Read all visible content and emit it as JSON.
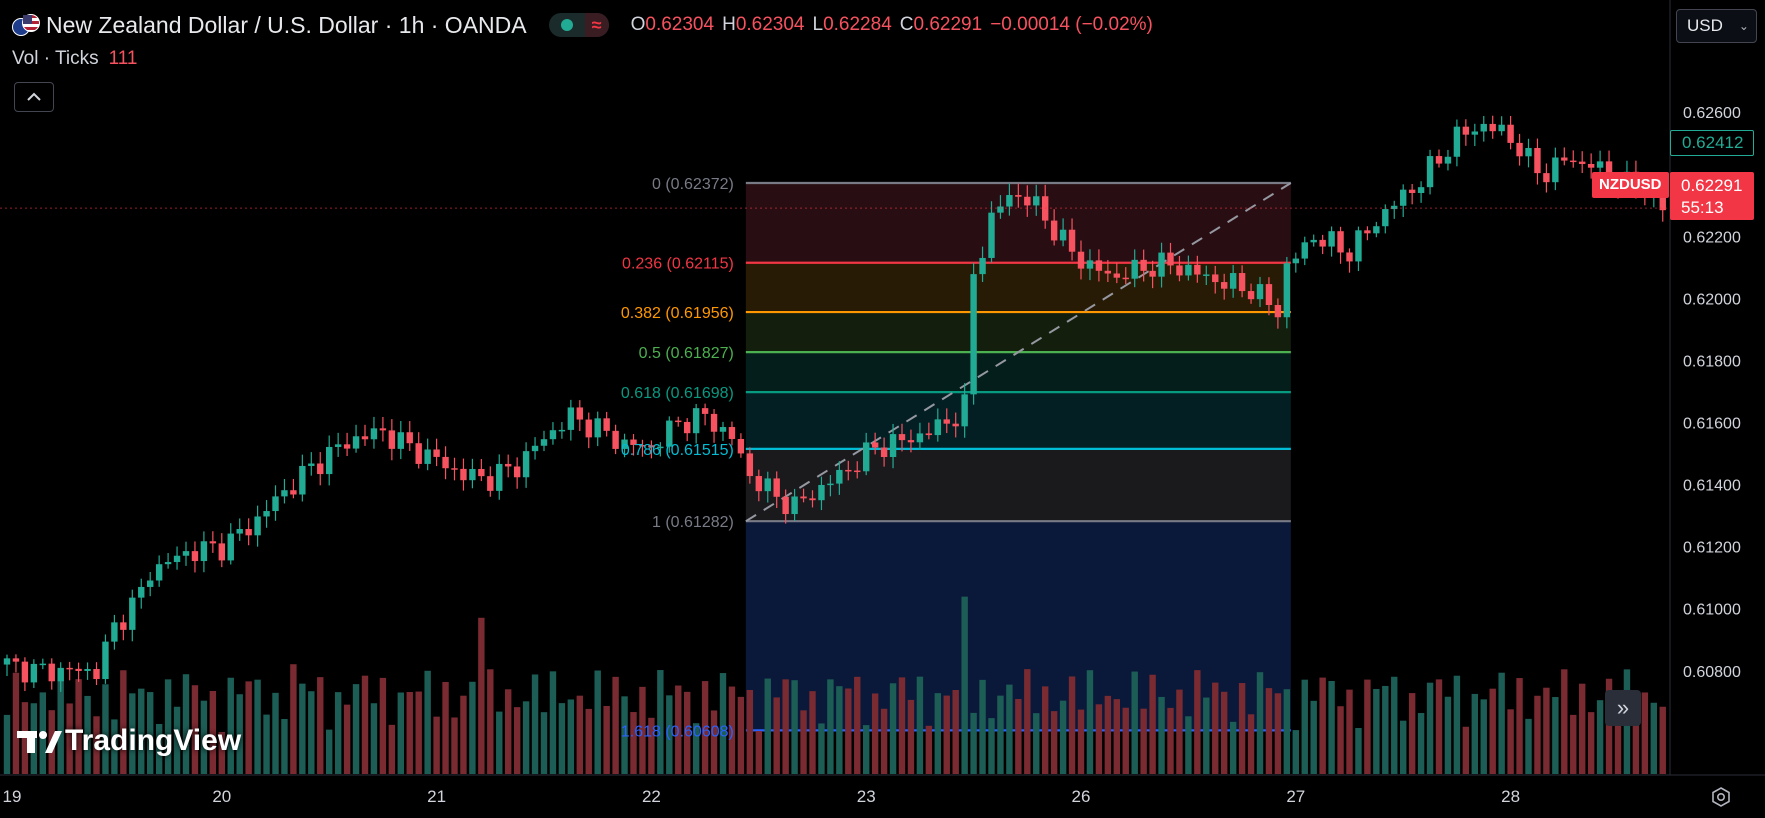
{
  "header": {
    "symbol_title": "New Zealand Dollar / U.S. Dollar · 1h · OANDA",
    "status_icon": "market-open-dot",
    "delay_icon": "wave-icon",
    "ohlc": [
      {
        "key": "O",
        "value": "0.62304"
      },
      {
        "key": "H",
        "value": "0.62304"
      },
      {
        "key": "L",
        "value": "0.62284"
      },
      {
        "key": "C",
        "value": "0.62291"
      }
    ],
    "change": "−0.00014 (−0.02%)",
    "volume_label": "Vol · Ticks",
    "volume_value": "111"
  },
  "toolbar": {
    "currency": "USD"
  },
  "badges": {
    "ticker": "NZDUSD",
    "last_price": "0.62291",
    "countdown": "55:13",
    "ma_price": "0.62412"
  },
  "branding": {
    "logo_text": "TradingView"
  },
  "colors": {
    "up": "#22ab94",
    "down": "#f7525f",
    "background": "#000000",
    "vol_up": "#1c5e56",
    "vol_down": "#7a2a31"
  },
  "chart_data": {
    "type": "candlestick",
    "symbol": "NZDUSD",
    "interval": "1h",
    "y_axis": {
      "ticks": [
        "0.62600",
        "0.62200",
        "0.62000",
        "0.61800",
        "0.61600",
        "0.61400",
        "0.61200",
        "0.61000",
        "0.60800"
      ],
      "tick_values": [
        0.626,
        0.622,
        0.62,
        0.618,
        0.616,
        0.614,
        0.612,
        0.61,
        0.608
      ],
      "range": [
        0.6068,
        0.6272
      ]
    },
    "x_axis": {
      "ticks": [
        "19",
        "20",
        "21",
        "22",
        "23",
        "26",
        "27",
        "28"
      ],
      "tick_index": [
        0,
        24,
        48,
        72,
        96,
        120,
        144,
        168
      ]
    },
    "candle_count": 186,
    "fibonacci": {
      "start_index": 83,
      "end_index": 143,
      "levels": [
        {
          "ratio": "0",
          "label": "0 (0.62372)",
          "price": 0.62372,
          "color": "#787b86",
          "fill": "#2a0f13"
        },
        {
          "ratio": "0.236",
          "label": "0.236 (0.62115)",
          "price": 0.62115,
          "color": "#f23645",
          "fill": "#2a1c06"
        },
        {
          "ratio": "0.382",
          "label": "0.382 (0.61956)",
          "price": 0.61956,
          "color": "#ff9800",
          "fill": "#14200d"
        },
        {
          "ratio": "0.5",
          "label": "0.5 (0.61827)",
          "price": 0.61827,
          "color": "#4caf50",
          "fill": "#04201c"
        },
        {
          "ratio": "0.618",
          "label": "0.618 (0.61698)",
          "price": 0.61698,
          "color": "#089981",
          "fill": "#032126"
        },
        {
          "ratio": "0.786",
          "label": "0.786 (0.61515)",
          "price": 0.61515,
          "color": "#00bcd4",
          "fill": "#1b1b1f"
        },
        {
          "ratio": "1",
          "label": "1 (0.61282)",
          "price": 0.61282,
          "color": "#787b86",
          "fill": "#0b1a3d"
        },
        {
          "ratio": "1.618",
          "label": "1.618 (0.60608)",
          "price": 0.60608,
          "color": "#2962ff",
          "fill": "#0b1a3d"
        }
      ]
    },
    "close_path": [
      [
        0,
        0.6082
      ],
      [
        3,
        0.608
      ],
      [
        6,
        0.608
      ],
      [
        10,
        0.608
      ],
      [
        12,
        0.6094
      ],
      [
        15,
        0.6105
      ],
      [
        16,
        0.6112
      ],
      [
        20,
        0.6118
      ],
      [
        24,
        0.612
      ],
      [
        27,
        0.6126
      ],
      [
        30,
        0.6135
      ],
      [
        33,
        0.6143
      ],
      [
        36,
        0.615
      ],
      [
        39,
        0.6155
      ],
      [
        42,
        0.6157
      ],
      [
        45,
        0.6152
      ],
      [
        48,
        0.6148
      ],
      [
        51,
        0.6143
      ],
      [
        54,
        0.6142
      ],
      [
        57,
        0.6146
      ],
      [
        60,
        0.6155
      ],
      [
        63,
        0.6162
      ],
      [
        66,
        0.6158
      ],
      [
        69,
        0.6153
      ],
      [
        72,
        0.6152
      ],
      [
        75,
        0.616
      ],
      [
        78,
        0.6162
      ],
      [
        81,
        0.6155
      ],
      [
        83,
        0.6143
      ],
      [
        86,
        0.6136
      ],
      [
        88,
        0.6133
      ],
      [
        91,
        0.6139
      ],
      [
        94,
        0.6145
      ],
      [
        97,
        0.6152
      ],
      [
        100,
        0.6154
      ],
      [
        103,
        0.6157
      ],
      [
        106,
        0.6162
      ],
      [
        107,
        0.6165
      ],
      [
        108,
        0.6208
      ],
      [
        110,
        0.6225
      ],
      [
        112,
        0.6234
      ],
      [
        115,
        0.623
      ],
      [
        118,
        0.6218
      ],
      [
        121,
        0.621
      ],
      [
        124,
        0.6207
      ],
      [
        127,
        0.621
      ],
      [
        130,
        0.6211
      ],
      [
        133,
        0.6208
      ],
      [
        136,
        0.6205
      ],
      [
        139,
        0.6203
      ],
      [
        142,
        0.6196
      ],
      [
        143,
        0.621
      ],
      [
        146,
        0.622
      ],
      [
        150,
        0.6215
      ],
      [
        154,
        0.6228
      ],
      [
        158,
        0.6238
      ],
      [
        162,
        0.6252
      ],
      [
        165,
        0.6256
      ],
      [
        168,
        0.6252
      ],
      [
        170,
        0.6244
      ],
      [
        172,
        0.624
      ],
      [
        174,
        0.6245
      ],
      [
        177,
        0.6243
      ],
      [
        180,
        0.6237
      ],
      [
        183,
        0.6235
      ],
      [
        185,
        0.6229
      ]
    ],
    "volume_max": 450
  }
}
